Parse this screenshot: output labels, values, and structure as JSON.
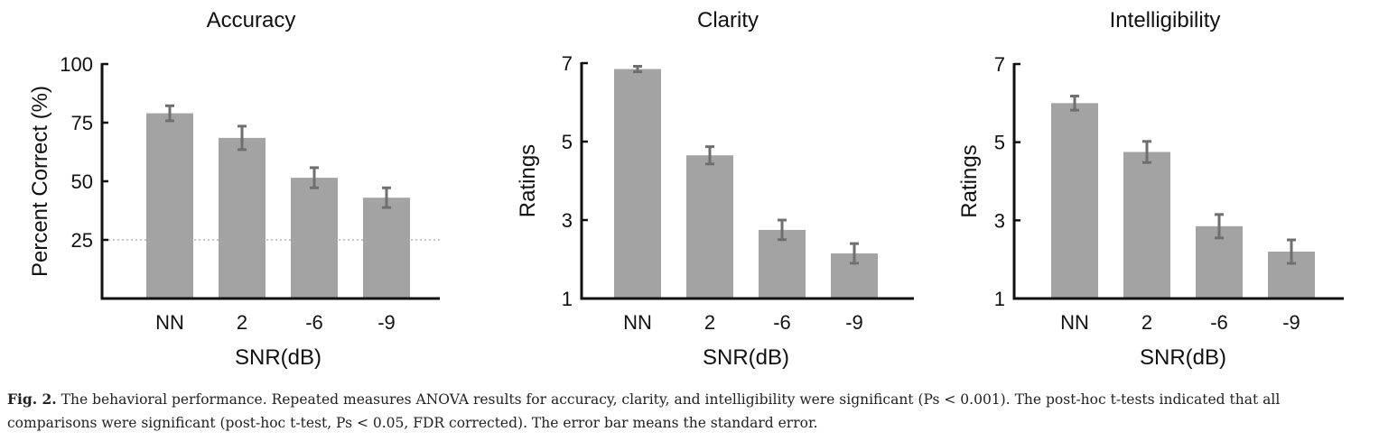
{
  "chart_data": [
    {
      "type": "bar",
      "title": "Accuracy",
      "xlabel": "SNR(dB)",
      "ylabel": "Percent Correct (%)",
      "categories": [
        "NN",
        "2",
        "-6",
        "-9"
      ],
      "values": [
        79,
        68.5,
        51.5,
        43
      ],
      "errors": [
        3.2,
        5,
        4.3,
        4.2
      ],
      "ylim": [
        0,
        100
      ],
      "yticks": [
        100,
        75,
        50,
        25
      ],
      "reference_line": 25,
      "bar_color": "#a3a3a3",
      "error_color": "#6f6f6f"
    },
    {
      "type": "bar",
      "title": "Clarity",
      "xlabel": "SNR(dB)",
      "ylabel": "Ratings",
      "categories": [
        "NN",
        "2",
        "-6",
        "-9"
      ],
      "values": [
        6.85,
        4.65,
        2.75,
        2.15
      ],
      "errors": [
        0.07,
        0.22,
        0.25,
        0.25
      ],
      "ylim": [
        1,
        7
      ],
      "yticks": [
        7,
        5,
        3,
        1
      ],
      "bar_color": "#a3a3a3",
      "error_color": "#6f6f6f"
    },
    {
      "type": "bar",
      "title": "Intelligibility",
      "xlabel": "SNR(dB)",
      "ylabel": "Ratings",
      "categories": [
        "NN",
        "2",
        "-6",
        "-9"
      ],
      "values": [
        6.0,
        4.75,
        2.85,
        2.2
      ],
      "errors": [
        0.18,
        0.27,
        0.3,
        0.3
      ],
      "ylim": [
        1,
        7
      ],
      "yticks": [
        7,
        5,
        3,
        1
      ],
      "bar_color": "#a3a3a3",
      "error_color": "#6f6f6f"
    }
  ],
  "caption": {
    "lead": "Fig. 2.",
    "text": " The behavioral performance. Repeated measures ANOVA results for accuracy, clarity, and intelligibility were significant (Ps < 0.001). The post-hoc t-tests indicated that all comparisons were significant (post-hoc t-test, Ps < 0.05, FDR corrected). The error bar means the standard error."
  }
}
